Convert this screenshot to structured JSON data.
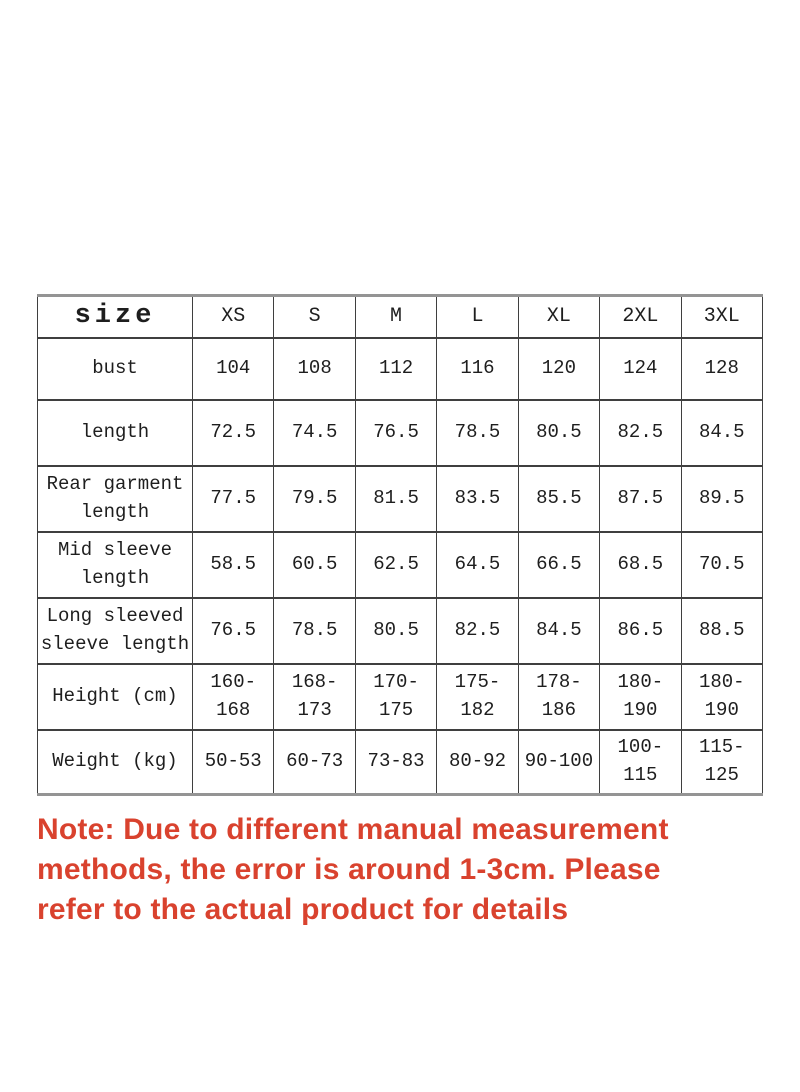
{
  "table": {
    "header": {
      "label": "size",
      "columns": [
        "XS",
        "S",
        "M",
        "L",
        "XL",
        "2XL",
        "3XL"
      ]
    },
    "rows": [
      {
        "label": "bust",
        "values": [
          "104",
          "108",
          "112",
          "116",
          "120",
          "124",
          "128"
        ]
      },
      {
        "label": "length",
        "values": [
          "72.5",
          "74.5",
          "76.5",
          "78.5",
          "80.5",
          "82.5",
          "84.5"
        ]
      },
      {
        "label": "Rear garment length",
        "values": [
          "77.5",
          "79.5",
          "81.5",
          "83.5",
          "85.5",
          "87.5",
          "89.5"
        ]
      },
      {
        "label": "Mid sleeve length",
        "values": [
          "58.5",
          "60.5",
          "62.5",
          "64.5",
          "66.5",
          "68.5",
          "70.5"
        ]
      },
      {
        "label": "Long sleeved sleeve length",
        "values": [
          "76.5",
          "78.5",
          "80.5",
          "82.5",
          "84.5",
          "86.5",
          "88.5"
        ]
      },
      {
        "label": "Height (cm)",
        "values": [
          "160-168",
          "168-173",
          "170-175",
          "175-182",
          "178-186",
          "180-190",
          "180-190"
        ]
      },
      {
        "label": "Weight (kg)",
        "values": [
          "50-53",
          "60-73",
          "73-83",
          "80-92",
          "90-100",
          "100-115",
          "115-125"
        ]
      }
    ]
  },
  "note": {
    "text": "Note: Due to different manual measurement\nmethods, the error is around 1-3cm. Please\nrefer to the actual product for details"
  },
  "colors": {
    "background": "#ffffff",
    "table_border_inner": "#3f3f3f",
    "table_border_outer": "#949494",
    "text": "#1e1e1e",
    "note_red": "#d9422e"
  }
}
